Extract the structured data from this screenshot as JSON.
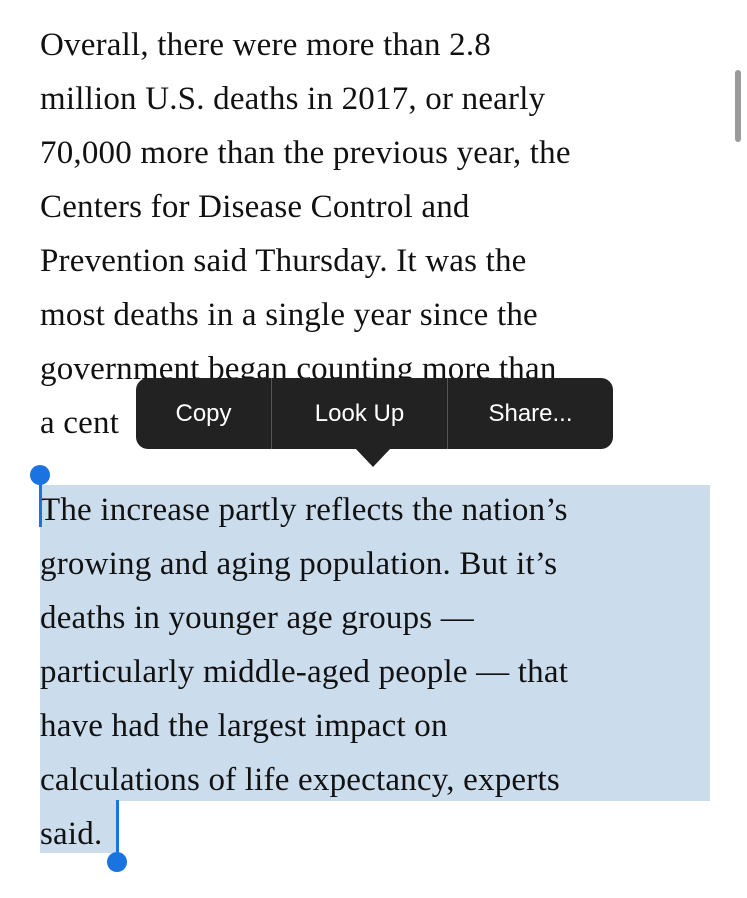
{
  "article": {
    "paragraph_1": [
      "Overall, there were more than 2.8",
      "million U.S. deaths in 2017, or nearly",
      "70,000 more than the previous year, the",
      "Centers for Disease Control and",
      "Prevention said Thursday. It was the",
      "most deaths in a single year since the",
      "government began counting more than",
      "a cent"
    ],
    "paragraph_2": [
      "The increase partly reflects the nation’s",
      "growing and aging population. But it’s",
      "deaths in younger age groups —",
      "particularly middle-aged people — that",
      "have had the largest impact on",
      "calculations of life expectancy, experts",
      "said."
    ]
  },
  "context_menu": {
    "items": [
      "Copy",
      "Look Up",
      "Share..."
    ]
  }
}
